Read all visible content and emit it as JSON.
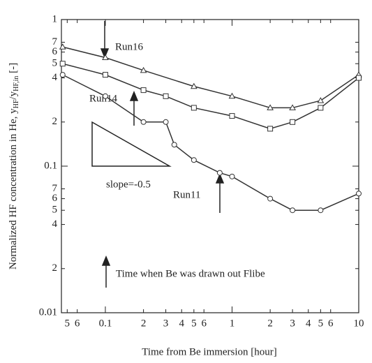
{
  "chart_data": {
    "type": "line",
    "x_label": "Time from Be immersion [hour]",
    "y_label_parts": [
      "Normalized HF concentration in He, y",
      "HF",
      "/y",
      "HF,in",
      " [-]"
    ],
    "xlog": true,
    "ylog": true,
    "xlim": [
      0.045,
      10
    ],
    "ylim": [
      0.01,
      1
    ],
    "xticks": [
      {
        "value": 0.05,
        "label": "5"
      },
      {
        "value": 0.06,
        "label": "6"
      },
      0.1,
      {
        "value": 0.2,
        "label": "2"
      },
      {
        "value": 0.3,
        "label": "3"
      },
      {
        "value": 0.4,
        "label": "4"
      },
      {
        "value": 0.5,
        "label": "5"
      },
      {
        "value": 0.6,
        "label": "6"
      },
      1,
      {
        "value": 2,
        "label": "2"
      },
      {
        "value": 3,
        "label": "3"
      },
      {
        "value": 4,
        "label": "4"
      },
      {
        "value": 5,
        "label": "5"
      },
      {
        "value": 6,
        "label": "6"
      },
      10
    ],
    "yticks": [
      0.01,
      {
        "value": 0.02,
        "label": "2"
      },
      {
        "value": 0.04,
        "label": "4"
      },
      {
        "value": 0.05,
        "label": "5"
      },
      {
        "value": 0.06,
        "label": "6"
      },
      {
        "value": 0.07,
        "label": "7"
      },
      0.1,
      {
        "value": 0.2,
        "label": "2"
      },
      {
        "value": 0.4,
        "label": "4"
      },
      {
        "value": 0.5,
        "label": "5"
      },
      {
        "value": 0.6,
        "label": "6"
      },
      {
        "value": 0.7,
        "label": "7"
      },
      1
    ],
    "series": [
      {
        "name": "Run16",
        "marker": "triangle",
        "color": "#333",
        "x": [
          0.046,
          0.1,
          0.2,
          0.5,
          1,
          2,
          3,
          5,
          10
        ],
        "values": [
          0.65,
          0.55,
          0.45,
          0.35,
          0.3,
          0.25,
          0.25,
          0.28,
          0.42
        ]
      },
      {
        "name": "Run14",
        "marker": "square",
        "color": "#333",
        "x": [
          0.046,
          0.1,
          0.2,
          0.3,
          0.5,
          1,
          2,
          3,
          5,
          10
        ],
        "values": [
          0.5,
          0.42,
          0.33,
          0.3,
          0.25,
          0.22,
          0.18,
          0.2,
          0.25,
          0.4
        ]
      },
      {
        "name": "Run11",
        "marker": "circle",
        "color": "#333",
        "x": [
          0.046,
          0.1,
          0.2,
          0.3,
          0.35,
          0.5,
          0.8,
          1,
          2,
          3,
          5,
          10
        ],
        "values": [
          0.42,
          0.3,
          0.2,
          0.2,
          0.14,
          0.11,
          0.09,
          0.085,
          0.06,
          0.05,
          0.05,
          0.065
        ]
      }
    ],
    "annotations": [
      "slope=-0.5",
      "Time when Be was drawn out Flibe"
    ]
  }
}
